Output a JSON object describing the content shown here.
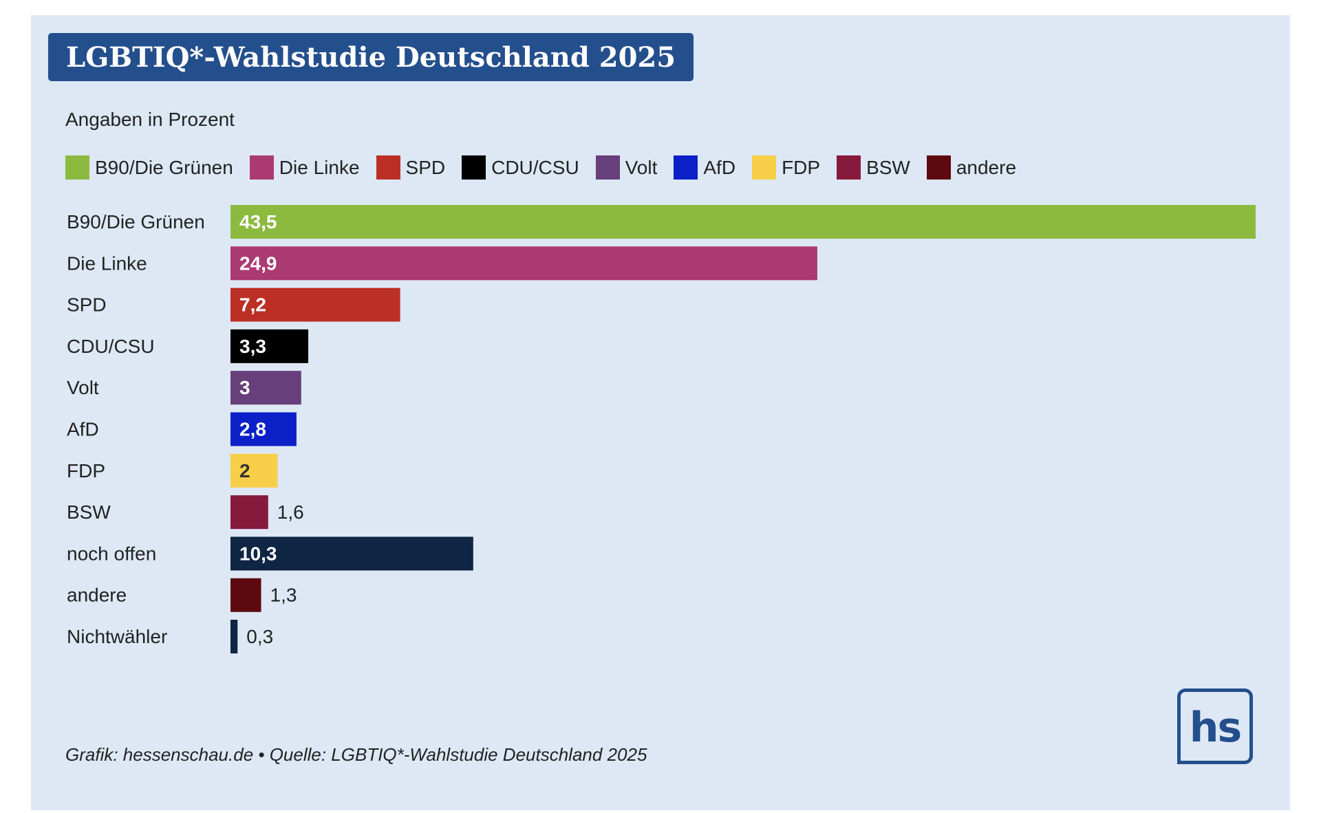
{
  "header": {
    "title": "LGBTIQ*-Wahlstudie Deutschland 2025",
    "subtitle": "Angaben in Prozent"
  },
  "legend": [
    {
      "label": "B90/Die Grünen",
      "color": "#8cba3f"
    },
    {
      "label": "Die Linke",
      "color": "#ab3a72"
    },
    {
      "label": "SPD",
      "color": "#bc2f25"
    },
    {
      "label": "CDU/CSU",
      "color": "#000000"
    },
    {
      "label": "Volt",
      "color": "#673f7b"
    },
    {
      "label": "AfD",
      "color": "#0c20c8"
    },
    {
      "label": "FDP",
      "color": "#f7cf48"
    },
    {
      "label": "BSW",
      "color": "#861a3c"
    },
    {
      "label": "andere",
      "color": "#5c0a0f"
    }
  ],
  "chart_data": {
    "type": "bar",
    "orientation": "horizontal",
    "categories": [
      "B90/Die Grünen",
      "Die Linke",
      "SPD",
      "CDU/CSU",
      "Volt",
      "AfD",
      "FDP",
      "BSW",
      "noch offen",
      "andere",
      "Nichtwähler"
    ],
    "values": [
      43.5,
      24.9,
      7.2,
      3.3,
      3,
      2.8,
      2,
      1.6,
      10.3,
      1.3,
      0.3
    ],
    "value_labels": [
      "43,5",
      "24,9",
      "7,2",
      "3,3",
      "3",
      "2,8",
      "2",
      "1,6",
      "10,3",
      "1,3",
      "0,3"
    ],
    "colors": [
      "#8cba3f",
      "#ab3a72",
      "#bc2f25",
      "#000000",
      "#673f7b",
      "#0c20c8",
      "#f7cf48",
      "#861a3c",
      "#0f2544",
      "#5c0a0f",
      "#0f2544"
    ],
    "label_colors": [
      "#ffffff",
      "#ffffff",
      "#ffffff",
      "#ffffff",
      "#ffffff",
      "#ffffff",
      "#333333",
      "#222222",
      "#ffffff",
      "#222222",
      "#222222"
    ],
    "xlim": [
      0,
      43.5
    ],
    "grid": false,
    "legend_position": "top"
  },
  "footer": {
    "source": "Grafik: hessenschau.de • Quelle: LGBTIQ*-Wahlstudie Deutschland 2025"
  },
  "logo": {
    "text": "hs",
    "color": "#244f8d"
  }
}
